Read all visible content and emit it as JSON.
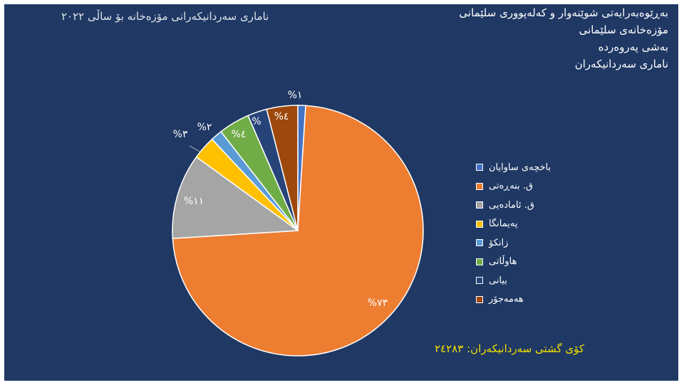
{
  "header": {
    "lines": [
      "بەڕێوەبەرایەتی شوێنەوار و کەلەپووری سلێمانی",
      "مۆزەخانەی سلێمانی",
      "بەشی پەروەردە",
      "ناماری سەردانیکەران"
    ]
  },
  "chart_data": {
    "type": "pie",
    "title": "ناماری سەردانیکەرانی مۆزەخانە بۆ ساڵی ٢٠٢٢",
    "slices": [
      {
        "name": "باخچەی ساوایان",
        "value": 1,
        "label": "%١",
        "color": "#4472c4"
      },
      {
        "name": "ق. بنەڕەتی",
        "value": 73,
        "label": "%٧٣",
        "color": "#ed7d31"
      },
      {
        "name": "ق. ئامادەیی",
        "value": 11,
        "label": "%١١",
        "color": "#a5a5a5"
      },
      {
        "name": "پەیمانگا",
        "value": 3,
        "label": "%٣",
        "color": "#ffc000"
      },
      {
        "name": "زانکۆ",
        "value": 1.5,
        "label": "%٢",
        "color": "#5b9bd5"
      },
      {
        "name": "هاوڵاتی",
        "value": 4,
        "label": "%٤",
        "color": "#70ad47"
      },
      {
        "name": "بیانی",
        "value": 2.5,
        "label": "%",
        "color": "#264478"
      },
      {
        "name": "هەمەجۆر",
        "value": 4,
        "label": "%٤",
        "color": "#9e480e"
      }
    ],
    "legend_position": "right"
  },
  "total": {
    "label": "کۆی گشتی سەردانیکەران:",
    "value": "٢٤٢٨٣"
  }
}
